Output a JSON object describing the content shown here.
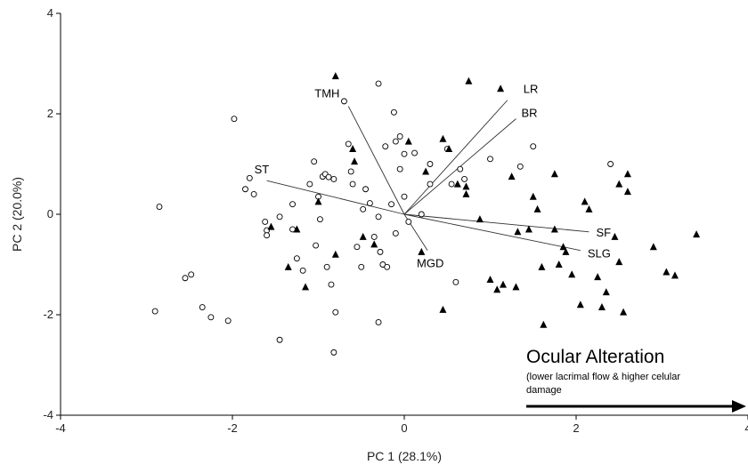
{
  "chart_data": {
    "type": "scatter",
    "title": "",
    "xlabel": "PC 1 (28.1%)",
    "ylabel": "PC 2 (20.0%)",
    "xlim": [
      -4,
      4
    ],
    "ylim": [
      -4,
      4
    ],
    "xticks": [
      -4,
      -2,
      0,
      2,
      4
    ],
    "yticks": [
      -4,
      -2,
      0,
      2,
      4
    ],
    "grid": false,
    "series": [
      {
        "marker": "open-circle",
        "points": [
          [
            -2.85,
            0.15
          ],
          [
            -2.9,
            -1.93
          ],
          [
            -2.55,
            -1.27
          ],
          [
            -2.48,
            -1.2
          ],
          [
            -2.35,
            -1.85
          ],
          [
            -2.25,
            -2.05
          ],
          [
            -2.05,
            -2.12
          ],
          [
            -1.98,
            1.9
          ],
          [
            -1.85,
            0.5
          ],
          [
            -1.8,
            0.72
          ],
          [
            -1.75,
            0.4
          ],
          [
            -1.62,
            -0.15
          ],
          [
            -1.6,
            -0.32
          ],
          [
            -1.6,
            -0.42
          ],
          [
            -1.45,
            -0.05
          ],
          [
            -1.45,
            -2.5
          ],
          [
            -1.3,
            0.2
          ],
          [
            -1.3,
            -0.3
          ],
          [
            -1.25,
            -0.88
          ],
          [
            -1.18,
            -1.12
          ],
          [
            -1.1,
            0.6
          ],
          [
            -1.05,
            1.05
          ],
          [
            -1.03,
            -0.62
          ],
          [
            -1.0,
            0.35
          ],
          [
            -0.98,
            -0.1
          ],
          [
            -0.95,
            0.75
          ],
          [
            -0.92,
            0.8
          ],
          [
            -0.9,
            -1.05
          ],
          [
            -0.88,
            0.74
          ],
          [
            -0.85,
            -1.4
          ],
          [
            -0.82,
            0.7
          ],
          [
            -0.8,
            -1.95
          ],
          [
            -0.82,
            -2.75
          ],
          [
            -0.65,
            1.4
          ],
          [
            -0.62,
            0.85
          ],
          [
            -0.6,
            0.6
          ],
          [
            -0.55,
            -0.65
          ],
          [
            -0.5,
            -1.05
          ],
          [
            -0.48,
            0.1
          ],
          [
            -0.45,
            0.5
          ],
          [
            -0.4,
            0.22
          ],
          [
            -0.35,
            -0.45
          ],
          [
            -0.3,
            -0.05
          ],
          [
            -0.28,
            -0.75
          ],
          [
            -0.25,
            -1.0
          ],
          [
            -0.22,
            1.35
          ],
          [
            -0.2,
            -1.05
          ],
          [
            -0.15,
            0.2
          ],
          [
            -0.1,
            1.45
          ],
          [
            -0.1,
            -0.38
          ],
          [
            -0.05,
            1.55
          ],
          [
            -0.05,
            0.9
          ],
          [
            -0.3,
            -2.15
          ],
          [
            -0.3,
            2.6
          ],
          [
            -0.12,
            2.03
          ],
          [
            -0.7,
            2.25
          ],
          [
            0.0,
            1.2
          ],
          [
            0.0,
            0.35
          ],
          [
            0.05,
            -0.15
          ],
          [
            0.12,
            1.22
          ],
          [
            0.2,
            0.0
          ],
          [
            0.3,
            1.0
          ],
          [
            0.3,
            0.6
          ],
          [
            0.5,
            1.3
          ],
          [
            0.55,
            0.6
          ],
          [
            0.6,
            -1.35
          ],
          [
            0.65,
            0.9
          ],
          [
            0.7,
            0.7
          ],
          [
            1.0,
            1.1
          ],
          [
            1.35,
            0.95
          ],
          [
            1.5,
            1.35
          ],
          [
            2.4,
            1.0
          ]
        ]
      },
      {
        "marker": "filled-triangle",
        "points": [
          [
            -1.55,
            -0.25
          ],
          [
            -1.35,
            -1.05
          ],
          [
            -1.25,
            -0.3
          ],
          [
            -1.15,
            -1.45
          ],
          [
            -1.0,
            0.25
          ],
          [
            -0.8,
            -0.8
          ],
          [
            -0.8,
            2.75
          ],
          [
            -0.6,
            1.3
          ],
          [
            -0.58,
            1.05
          ],
          [
            -0.48,
            -0.45
          ],
          [
            -0.35,
            -0.6
          ],
          [
            0.05,
            1.45
          ],
          [
            0.2,
            -0.75
          ],
          [
            0.25,
            0.85
          ],
          [
            0.45,
            1.5
          ],
          [
            0.45,
            -1.9
          ],
          [
            0.52,
            1.3
          ],
          [
            0.62,
            0.6
          ],
          [
            0.72,
            0.55
          ],
          [
            0.72,
            0.4
          ],
          [
            0.75,
            2.65
          ],
          [
            0.88,
            -0.1
          ],
          [
            1.0,
            -1.3
          ],
          [
            1.08,
            -1.5
          ],
          [
            1.12,
            2.5
          ],
          [
            1.15,
            -1.4
          ],
          [
            1.25,
            0.75
          ],
          [
            1.3,
            -1.45
          ],
          [
            1.32,
            -0.35
          ],
          [
            1.45,
            -0.3
          ],
          [
            1.5,
            0.35
          ],
          [
            1.55,
            0.1
          ],
          [
            1.6,
            -1.05
          ],
          [
            1.62,
            -2.2
          ],
          [
            1.75,
            -0.3
          ],
          [
            1.75,
            0.8
          ],
          [
            1.8,
            -1.0
          ],
          [
            1.85,
            -0.65
          ],
          [
            1.88,
            -0.75
          ],
          [
            1.95,
            -1.2
          ],
          [
            2.05,
            -1.8
          ],
          [
            2.1,
            0.25
          ],
          [
            2.15,
            0.1
          ],
          [
            2.25,
            -1.25
          ],
          [
            2.3,
            -1.85
          ],
          [
            2.35,
            -1.55
          ],
          [
            2.45,
            -0.45
          ],
          [
            2.5,
            -0.95
          ],
          [
            2.5,
            0.6
          ],
          [
            2.55,
            -1.95
          ],
          [
            2.6,
            0.8
          ],
          [
            2.6,
            0.45
          ],
          [
            2.9,
            -0.65
          ],
          [
            3.05,
            -1.15
          ],
          [
            3.15,
            -1.22
          ],
          [
            3.4,
            -0.4
          ]
        ]
      }
    ],
    "vectors": [
      {
        "label": "LR",
        "to": [
          1.2,
          2.27
        ]
      },
      {
        "label": "BR",
        "to": [
          1.3,
          1.9
        ]
      },
      {
        "label": "TMH",
        "to": [
          -0.65,
          2.15
        ]
      },
      {
        "label": "ST",
        "to": [
          -1.6,
          0.67
        ]
      },
      {
        "label": "SF",
        "to": [
          2.15,
          -0.35
        ]
      },
      {
        "label": "SLG",
        "to": [
          2.05,
          -0.72
        ]
      },
      {
        "label": "MGD",
        "to": [
          0.27,
          -0.72
        ]
      }
    ],
    "annotation": {
      "title": "Ocular Alteration",
      "subtitle_line1": "(lower lacrimal flow & higher celular",
      "subtitle_line2": "damage"
    }
  },
  "colors": {
    "axis": "#000000",
    "vector": "#333333",
    "marker": "#000000"
  }
}
